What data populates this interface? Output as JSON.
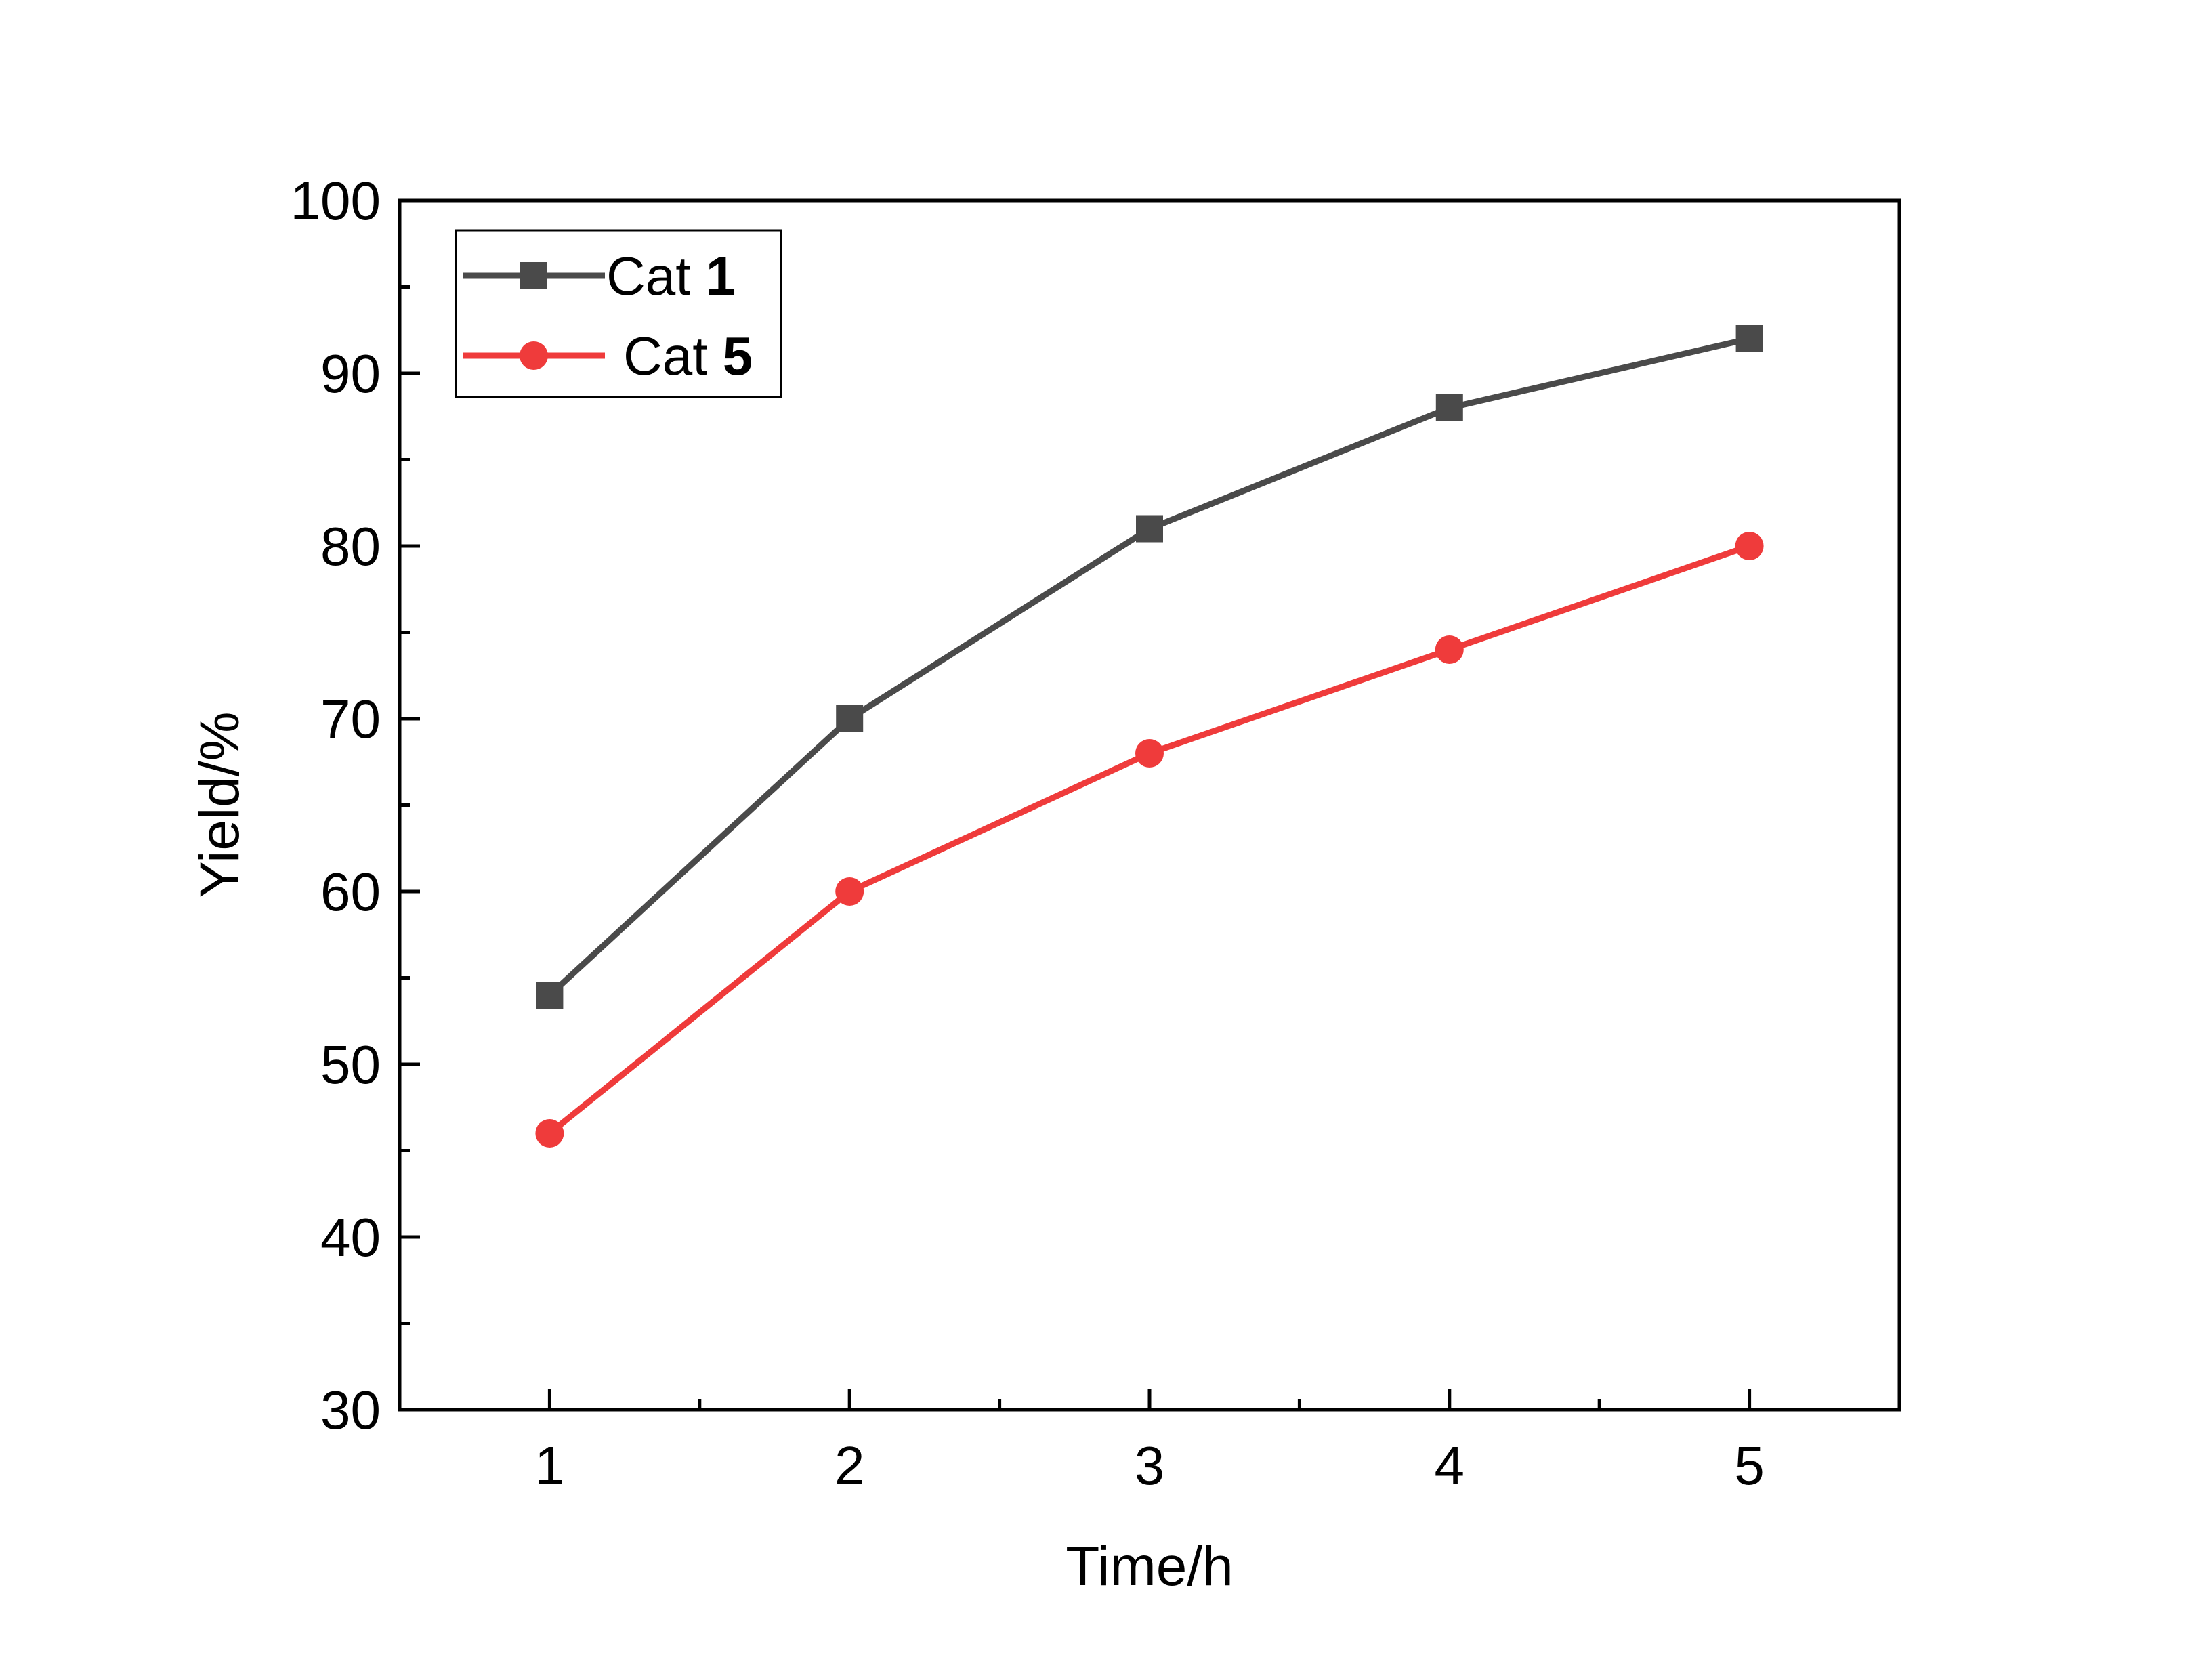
{
  "chart_data": {
    "type": "line",
    "title": "",
    "xlabel": "Time/h",
    "ylabel": "Yield/%",
    "x": [
      1,
      2,
      3,
      4,
      5
    ],
    "xlim": [
      0.5,
      5.5
    ],
    "ylim": [
      30,
      100
    ],
    "xticks": [
      "1",
      "2",
      "3",
      "4",
      "5"
    ],
    "yticks": [
      "30",
      "40",
      "50",
      "60",
      "70",
      "80",
      "90",
      "100"
    ],
    "grid": false,
    "legend_position": "top-left",
    "series": [
      {
        "name": "Cat",
        "name_bold": "1",
        "marker": "square",
        "color": "#4a4a4a",
        "values": [
          54,
          70,
          81,
          88,
          92
        ]
      },
      {
        "name": "Cat",
        "name_bold": "5",
        "marker": "circle",
        "color": "#ef3b3b",
        "values": [
          46,
          60,
          68,
          74,
          80
        ]
      }
    ]
  }
}
